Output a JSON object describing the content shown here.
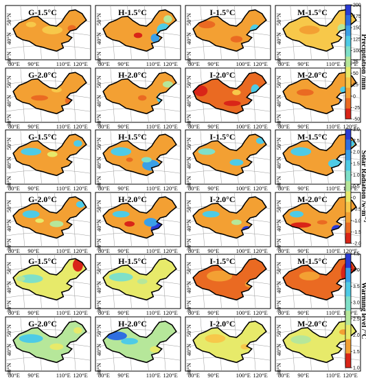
{
  "groups": [
    {
      "id": "precipitation",
      "colorbar": {
        "title": "Precipitation /mm",
        "ticks": [
          "200",
          "175",
          "150",
          "125",
          "100",
          "75",
          "50",
          "25",
          "0",
          "-25",
          "-50"
        ],
        "colors": [
          "#2a3bd6",
          "#2f6ee0",
          "#3aa0e8",
          "#4ecbe6",
          "#7fe0c8",
          "#b6e79a",
          "#e7ea6a",
          "#f7c84a",
          "#f3a033",
          "#ea6a22",
          "#d92518"
        ]
      },
      "rows": [
        {
          "panels": [
            {
              "title": "G-1.5°C",
              "theme": "g15p"
            },
            {
              "title": "H-1.5°C",
              "theme": "h15p"
            },
            {
              "title": "I-1.5°C",
              "theme": "i15p"
            },
            {
              "title": "M-1.5°C",
              "theme": "m15p"
            }
          ]
        },
        {
          "panels": [
            {
              "title": "G-2.0°C",
              "theme": "g20p"
            },
            {
              "title": "H-2.0°C",
              "theme": "h20p"
            },
            {
              "title": "I-2.0°C",
              "theme": "i20p"
            },
            {
              "title": "M-2.0°C",
              "theme": "m20p"
            }
          ]
        }
      ]
    },
    {
      "id": "solar",
      "colorbar": {
        "title": "Solar Radiation /w·m⁻²",
        "ticks": [
          "3.0",
          "2.5",
          "2.0",
          "1.5",
          "1.0",
          "0.5",
          "0",
          "-0.5",
          "-1.0",
          "-1.5",
          "-2.0"
        ],
        "colors": [
          "#2a3bd6",
          "#2f6ee0",
          "#3aa0e8",
          "#4ecbe6",
          "#7fe0c8",
          "#b6e79a",
          "#e7ea6a",
          "#f7c84a",
          "#f3a033",
          "#ea6a22",
          "#d92518"
        ]
      },
      "rows": [
        {
          "panels": [
            {
              "title": "G-1.5°C",
              "theme": "g15s"
            },
            {
              "title": "H-1.5°C",
              "theme": "h15s"
            },
            {
              "title": "I-1.5°C",
              "theme": "i15s"
            },
            {
              "title": "M-1.5°C",
              "theme": "m15s"
            }
          ]
        },
        {
          "panels": [
            {
              "title": "G-2.0°C",
              "theme": "g20s"
            },
            {
              "title": "H-2.0°C",
              "theme": "h20s"
            },
            {
              "title": "I-2.0°C",
              "theme": "i20s"
            },
            {
              "title": "M-2.0°C",
              "theme": "m20s"
            }
          ]
        }
      ]
    },
    {
      "id": "warming",
      "colorbar": {
        "title": "Warming level /°C",
        "ticks": [
          "4.5",
          "4.0",
          "3.5",
          "3.0",
          "2.5",
          "2.0",
          "1.5",
          "1.0"
        ],
        "colors": [
          "#2a3bd6",
          "#3aa0e8",
          "#4ecbe6",
          "#7fe0c8",
          "#b6e79a",
          "#e7ea6a",
          "#f3a033",
          "#d92518"
        ]
      },
      "rows": [
        {
          "panels": [
            {
              "title": "G-1.5°C",
              "theme": "g15w"
            },
            {
              "title": "H-1.5°C",
              "theme": "h15w"
            },
            {
              "title": "I-1.5°C",
              "theme": "i15w"
            },
            {
              "title": "M-1.5°C",
              "theme": "m15w"
            }
          ]
        },
        {
          "panels": [
            {
              "title": "G-2.0°C",
              "theme": "g20w"
            },
            {
              "title": "H-2.0°C",
              "theme": "h20w"
            },
            {
              "title": "I-2.0°C",
              "theme": "i20w"
            },
            {
              "title": "M-2.0°C",
              "theme": "m20w"
            }
          ]
        }
      ]
    }
  ],
  "axes": {
    "lat_labels": [
      "50°N",
      "40°N",
      "30°N"
    ],
    "lon_labels_a": [
      "80°E",
      "90°E",
      "110°E",
      "120°E"
    ],
    "lon_labels_b": [
      "80°E",
      "90°E",
      "100°E",
      "120°E"
    ]
  },
  "colors": {
    "frame": "#000000",
    "grid": "#9a9a9a"
  }
}
